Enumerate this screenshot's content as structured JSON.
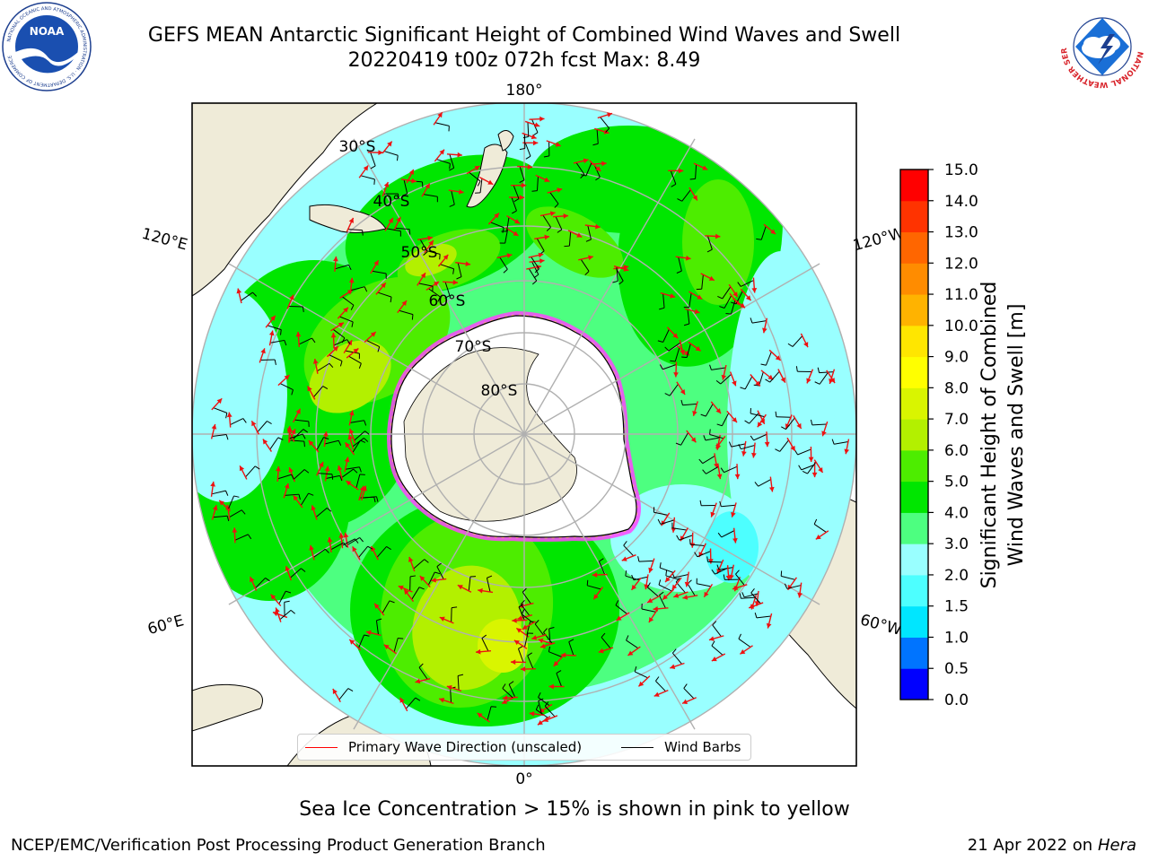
{
  "header": {
    "title_line1": "GEFS MEAN Antarctic Significant Height of Combined Wind Waves and Swell",
    "title_line2": "20220419 t00z 072h fcst   Max: 8.49"
  },
  "logos": {
    "left": {
      "name": "noaa-logo",
      "text": "NOAA",
      "ring_text": "NATIONAL OCEANIC AND ATMOSPHERIC ADMINISTRATION · U.S. DEPARTMENT OF COMMERCE"
    },
    "right": {
      "name": "nws-logo",
      "ring_text": "NATIONAL WEATHER SERVICE"
    }
  },
  "map": {
    "projection": "south-polar-stereographic",
    "center": "South Pole",
    "longitude_labels": [
      "180°",
      "120°E",
      "120°W",
      "60°E",
      "60°W",
      "0°"
    ],
    "latitude_labels": [
      "30°S",
      "40°S",
      "50°S",
      "60°S",
      "70°S",
      "80°S"
    ],
    "colors": {
      "land": "#efebd8",
      "ice_shelf": "#ffffff",
      "grid": "#b0b0b0",
      "wave_arrow": "#ee1111",
      "wind_barb": "#000000",
      "sea_ice_edge": "#ff44ff"
    }
  },
  "legend": {
    "items": [
      {
        "label": "Primary Wave Direction (unscaled)",
        "color": "#ff0000"
      },
      {
        "label": "Wind Barbs",
        "color": "#000000"
      }
    ]
  },
  "colorbar": {
    "label_line1": "Significant Height of Combined",
    "label_line2": "Wind Waves and Swell [m]",
    "ticks": [
      "0.0",
      "0.5",
      "1.0",
      "1.5",
      "2.0",
      "3.0",
      "4.0",
      "5.0",
      "6.0",
      "7.0",
      "8.0",
      "9.0",
      "10.0",
      "11.0",
      "12.0",
      "13.0",
      "14.0",
      "15.0"
    ],
    "colors": [
      "#0000ff",
      "#0074ff",
      "#00e6ff",
      "#4dffff",
      "#99ffff",
      "#4dff80",
      "#00e600",
      "#4ded00",
      "#b3f000",
      "#d9f500",
      "#ffff00",
      "#ffe600",
      "#ffb300",
      "#ff8c00",
      "#ff6600",
      "#ff3300",
      "#ff0000"
    ]
  },
  "notes": {
    "ice": "Sea Ice Concentration > 15% is shown in pink to yellow",
    "footer_left": "NCEP/EMC/Verification Post Processing Product Generation Branch",
    "footer_date": "21 Apr 2022 on",
    "footer_host": "Hera"
  }
}
